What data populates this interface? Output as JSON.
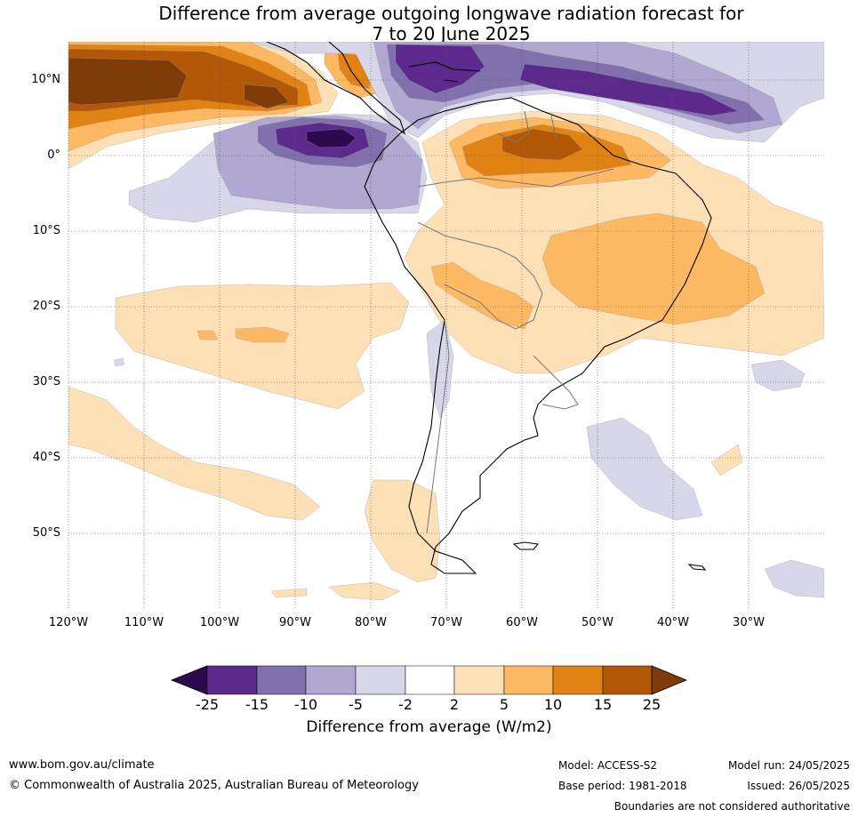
{
  "title": {
    "line1": "Difference from average outgoing longwave radiation forecast for",
    "line2": "7 to 20 June 2025"
  },
  "map": {
    "lat_labels": [
      "10°N",
      "0°",
      "10°S",
      "20°S",
      "30°S",
      "40°S",
      "50°S"
    ],
    "lon_labels": [
      "120°W",
      "110°W",
      "100°W",
      "90°W",
      "80°W",
      "70°W",
      "60°W",
      "50°W",
      "40°W",
      "30°W"
    ],
    "lon_range": [
      -120,
      -20
    ],
    "lat_range": [
      -60,
      15
    ]
  },
  "colorbar": {
    "ticks": [
      "-25",
      "-15",
      "-10",
      "-5",
      "-2",
      "2",
      "5",
      "10",
      "15",
      "25"
    ],
    "colors": [
      "#2d0a4e",
      "#5c2a8c",
      "#8071ad",
      "#b0a8d1",
      "#d8d7ea",
      "#ffffff",
      "#fee0b6",
      "#fdb863",
      "#e08214",
      "#b35806",
      "#7f3b08"
    ],
    "title": "Difference from average (W/m2)"
  },
  "footer": {
    "website": "www.bom.gov.au/climate",
    "copyright": "© Commonwealth of Australia 2025, Australian Bureau of Meteorology",
    "model": "Model: ACCESS-S2",
    "base_period": "Base period: 1981-2018",
    "model_run": "Model run: 24/05/2025",
    "issued": "Issued: 26/05/2025",
    "disclaimer": "Boundaries are not considered authoritative"
  }
}
